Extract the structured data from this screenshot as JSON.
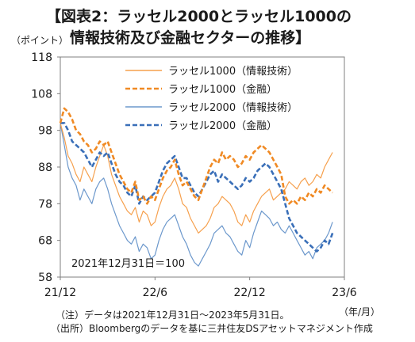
{
  "title": {
    "line1": "【図表2：ラッセル2000とラッセル1000の",
    "line2": "情報技術及び金融セクターの推移】"
  },
  "chart_data": {
    "type": "line",
    "y_unit_label": "（ポイント）",
    "x_unit_label": "（年/月）",
    "annotation": "2021年12月31日＝100",
    "ylim": [
      58,
      118
    ],
    "y_ticks": [
      58,
      68,
      78,
      88,
      98,
      108,
      118
    ],
    "x_ticks": [
      {
        "label": "21/12",
        "t": 0
      },
      {
        "label": "22/6",
        "t": 6
      },
      {
        "label": "22/12",
        "t": 12
      },
      {
        "label": "23/6",
        "t": 18
      }
    ],
    "xlim": [
      0,
      18
    ],
    "legend_position": "top-right",
    "series": [
      {
        "name": "ラッセル1000（情報技術）",
        "color": "#f6a04d",
        "style": "solid",
        "t": [
          0,
          0.25,
          0.5,
          0.75,
          1,
          1.25,
          1.5,
          1.75,
          2,
          2.25,
          2.5,
          2.75,
          3,
          3.25,
          3.5,
          3.75,
          4,
          4.25,
          4.5,
          4.75,
          5,
          5.25,
          5.5,
          5.75,
          6,
          6.25,
          6.5,
          6.75,
          7,
          7.25,
          7.5,
          7.75,
          8,
          8.25,
          8.5,
          8.75,
          9,
          9.25,
          9.5,
          9.75,
          10,
          10.25,
          10.5,
          10.75,
          11,
          11.25,
          11.5,
          11.75,
          12,
          12.25,
          12.5,
          12.75,
          13,
          13.25,
          13.5,
          13.75,
          14,
          14.25,
          14.5,
          14.75,
          15,
          15.25,
          15.5,
          15.75,
          16,
          16.25,
          16.5,
          16.75,
          17,
          17.25
        ],
        "values": [
          100,
          96,
          91,
          89,
          86,
          84,
          88,
          86,
          84,
          88,
          91,
          94,
          91,
          86,
          83,
          80,
          78,
          76,
          75,
          77,
          73,
          76,
          75,
          72,
          73,
          77,
          80,
          82,
          83,
          85,
          82,
          78,
          77,
          74,
          72,
          70,
          71,
          72,
          74,
          77,
          78,
          80,
          79,
          78,
          76,
          73,
          72,
          75,
          73,
          76,
          78,
          80,
          81,
          82,
          79,
          80,
          81,
          82,
          84,
          83,
          82,
          84,
          85,
          83,
          84,
          86,
          85,
          88,
          90,
          92
        ]
      },
      {
        "name": "ラッセル1000（金融）",
        "color": "#f08a24",
        "style": "dashed",
        "t": [
          0,
          0.25,
          0.5,
          0.75,
          1,
          1.25,
          1.5,
          1.75,
          2,
          2.25,
          2.5,
          2.75,
          3,
          3.25,
          3.5,
          3.75,
          4,
          4.25,
          4.5,
          4.75,
          5,
          5.25,
          5.5,
          5.75,
          6,
          6.25,
          6.5,
          6.75,
          7,
          7.25,
          7.5,
          7.75,
          8,
          8.25,
          8.5,
          8.75,
          9,
          9.25,
          9.5,
          9.75,
          10,
          10.25,
          10.5,
          10.75,
          11,
          11.25,
          11.5,
          11.75,
          12,
          12.25,
          12.5,
          12.75,
          13,
          13.25,
          13.5,
          13.75,
          14,
          14.25,
          14.5,
          14.75,
          15,
          15.25,
          15.5,
          15.75,
          16,
          16.25,
          16.5,
          16.75,
          17,
          17.25
        ],
        "values": [
          100,
          104,
          103,
          101,
          98,
          97,
          95,
          94,
          92,
          93,
          95,
          94,
          95,
          92,
          89,
          86,
          84,
          82,
          81,
          84,
          79,
          80,
          78,
          80,
          79,
          82,
          85,
          87,
          88,
          90,
          86,
          83,
          84,
          82,
          80,
          79,
          82,
          85,
          88,
          90,
          89,
          92,
          90,
          91,
          90,
          88,
          89,
          91,
          90,
          92,
          93,
          94,
          93,
          92,
          90,
          88,
          86,
          80,
          78,
          79,
          78,
          80,
          79,
          81,
          80,
          82,
          81,
          83,
          82,
          81
        ]
      },
      {
        "name": "ラッセル2000（情報技術）",
        "color": "#6c98cc",
        "style": "solid",
        "t": [
          0,
          0.25,
          0.5,
          0.75,
          1,
          1.25,
          1.5,
          1.75,
          2,
          2.25,
          2.5,
          2.75,
          3,
          3.25,
          3.5,
          3.75,
          4,
          4.25,
          4.5,
          4.75,
          5,
          5.25,
          5.5,
          5.75,
          6,
          6.25,
          6.5,
          6.75,
          7,
          7.25,
          7.5,
          7.75,
          8,
          8.25,
          8.5,
          8.75,
          9,
          9.25,
          9.5,
          9.75,
          10,
          10.25,
          10.5,
          10.75,
          11,
          11.25,
          11.5,
          11.75,
          12,
          12.25,
          12.5,
          12.75,
          13,
          13.25,
          13.5,
          13.75,
          14,
          14.25,
          14.5,
          14.75,
          15,
          15.25,
          15.5,
          15.75,
          16,
          16.25,
          16.5,
          16.75,
          17,
          17.25
        ],
        "values": [
          100,
          94,
          88,
          85,
          83,
          79,
          82,
          80,
          78,
          82,
          84,
          85,
          82,
          78,
          75,
          72,
          70,
          68,
          67,
          69,
          65,
          67,
          66,
          63,
          64,
          68,
          71,
          73,
          74,
          75,
          72,
          69,
          67,
          64,
          62,
          61,
          63,
          65,
          67,
          70,
          71,
          72,
          70,
          69,
          67,
          65,
          64,
          68,
          66,
          70,
          73,
          76,
          75,
          74,
          72,
          73,
          71,
          70,
          72,
          70,
          68,
          66,
          64,
          65,
          63,
          66,
          67,
          68,
          70,
          73
        ]
      },
      {
        "name": "ラッセル2000（金融）",
        "color": "#3a6fb8",
        "style": "dashed",
        "t": [
          0,
          0.25,
          0.5,
          0.75,
          1,
          1.25,
          1.5,
          1.75,
          2,
          2.25,
          2.5,
          2.75,
          3,
          3.25,
          3.5,
          3.75,
          4,
          4.25,
          4.5,
          4.75,
          5,
          5.25,
          5.5,
          5.75,
          6,
          6.25,
          6.5,
          6.75,
          7,
          7.25,
          7.5,
          7.75,
          8,
          8.25,
          8.5,
          8.75,
          9,
          9.25,
          9.5,
          9.75,
          10,
          10.25,
          10.5,
          10.75,
          11,
          11.25,
          11.5,
          11.75,
          12,
          12.25,
          12.5,
          12.75,
          13,
          13.25,
          13.5,
          13.75,
          14,
          14.25,
          14.5,
          14.75,
          15,
          15.25,
          15.5,
          15.75,
          16,
          16.25,
          16.5,
          16.75,
          17,
          17.25
        ],
        "values": [
          100,
          100,
          98,
          95,
          94,
          93,
          92,
          90,
          88,
          90,
          92,
          91,
          92,
          89,
          86,
          84,
          83,
          81,
          80,
          83,
          78,
          80,
          79,
          80,
          81,
          84,
          87,
          89,
          90,
          91,
          88,
          85,
          85,
          83,
          81,
          80,
          82,
          84,
          86,
          87,
          84,
          86,
          85,
          84,
          83,
          82,
          83,
          85,
          84,
          85,
          87,
          88,
          89,
          88,
          86,
          84,
          82,
          78,
          74,
          72,
          70,
          69,
          68,
          67,
          66,
          65,
          66,
          68,
          67,
          70
        ]
      }
    ]
  },
  "notes": {
    "line1": "（注）データは2021年12月31日～2023年5月31日。",
    "line2": "（出所）Bloombergのデータを基に三井住友DSアセットマネジメント作成"
  },
  "colors": {
    "axis": "#7f7f7f",
    "text": "#1a1a1a"
  }
}
